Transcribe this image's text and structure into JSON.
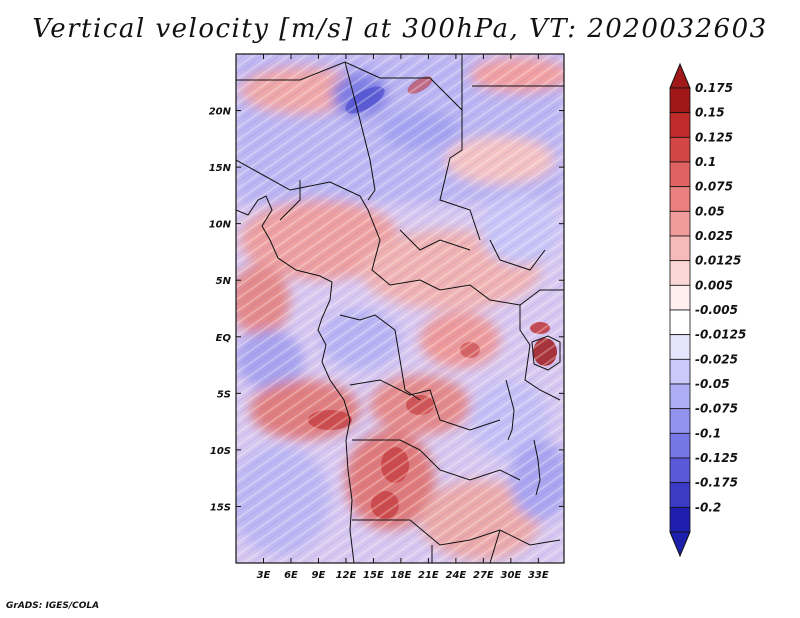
{
  "title": "Vertical velocity [m/s] at 300hPa, VT: 2020032603",
  "credit": "GrADS: IGES/COLA",
  "map": {
    "lon_range": [
      0,
      35.8
    ],
    "lat_range": [
      -20,
      25
    ],
    "x_ticks": [
      {
        "value": 3,
        "label": "3E"
      },
      {
        "value": 6,
        "label": "6E"
      },
      {
        "value": 9,
        "label": "9E"
      },
      {
        "value": 12,
        "label": "12E"
      },
      {
        "value": 15,
        "label": "15E"
      },
      {
        "value": 18,
        "label": "18E"
      },
      {
        "value": 21,
        "label": "21E"
      },
      {
        "value": 24,
        "label": "24E"
      },
      {
        "value": 27,
        "label": "27E"
      },
      {
        "value": 30,
        "label": "30E"
      },
      {
        "value": 33,
        "label": "33E"
      }
    ],
    "y_ticks": [
      {
        "value": 20,
        "label": "20N"
      },
      {
        "value": 15,
        "label": "15N"
      },
      {
        "value": 10,
        "label": "10N"
      },
      {
        "value": 5,
        "label": "5N"
      },
      {
        "value": 0,
        "label": "EQ"
      },
      {
        "value": -5,
        "label": "5S"
      },
      {
        "value": -10,
        "label": "10S"
      },
      {
        "value": -15,
        "label": "15S"
      }
    ]
  },
  "colorbar": {
    "levels": [
      {
        "label": "0.175",
        "color": "#a01818"
      },
      {
        "label": "0.15",
        "color": "#bf2a2a"
      },
      {
        "label": "0.125",
        "color": "#d34646"
      },
      {
        "label": "0.1",
        "color": "#e06262"
      },
      {
        "label": "0.075",
        "color": "#e97f7f"
      },
      {
        "label": "0.05",
        "color": "#f19c9c"
      },
      {
        "label": "0.025",
        "color": "#f7baba"
      },
      {
        "label": "0.0125",
        "color": "#fbd6d6"
      },
      {
        "label": "0.005",
        "color": "#feeeee"
      },
      {
        "label": "-0.005",
        "color": "#ffffff"
      },
      {
        "label": "-0.0125",
        "color": "#e4e4fd"
      },
      {
        "label": "-0.025",
        "color": "#c9c9fa"
      },
      {
        "label": "-0.05",
        "color": "#aeaef6"
      },
      {
        "label": "-0.075",
        "color": "#9292ef"
      },
      {
        "label": "-0.1",
        "color": "#7676e6"
      },
      {
        "label": "-0.125",
        "color": "#5a5ad9"
      },
      {
        "label": "-0.175",
        "color": "#3b3bc6"
      },
      {
        "label": "-0.2",
        "color": "#1f1fad"
      }
    ],
    "top_cap_color": "#a01818",
    "bottom_cap_color": "#1f1fad"
  }
}
